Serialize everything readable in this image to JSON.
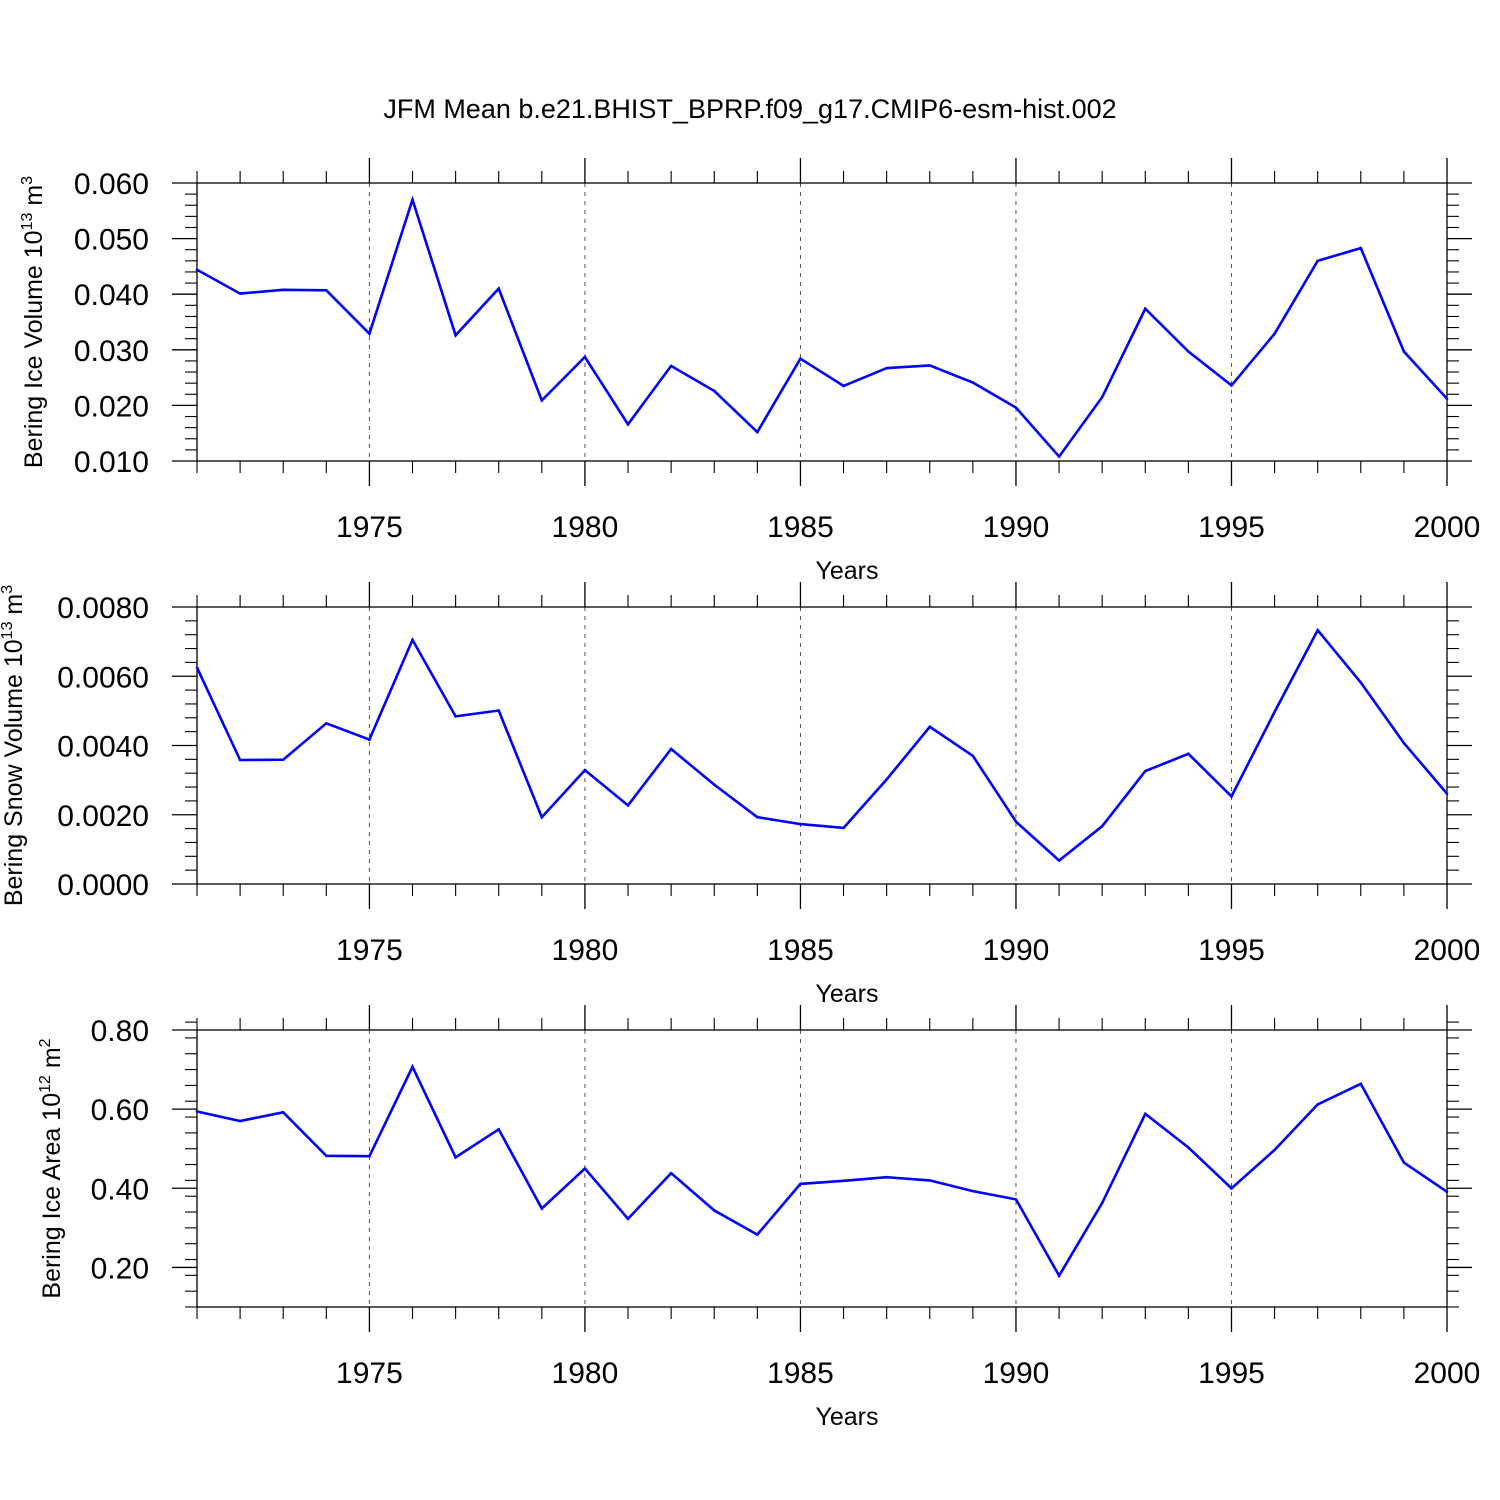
{
  "title": "JFM Mean b.e21.BHIST_BPRP.f09_g17.CMIP6-esm-hist.002",
  "colors": {
    "line": "#0000ff",
    "axis": "#000000",
    "grid": "#555555"
  },
  "chart_data": [
    {
      "type": "line",
      "name": "ice-volume",
      "ylabel_text": "Bering Ice Volume 10",
      "ylabel_exp": "13",
      "ylabel_unit": " m",
      "ylabel_unit_exp": "3",
      "xlabel": "Years",
      "xlim": [
        1971,
        2000
      ],
      "ylim": [
        0.01,
        0.06
      ],
      "yticks": [
        0.01,
        0.02,
        0.03,
        0.04,
        0.05,
        0.06
      ],
      "ytick_labels": [
        "0.010",
        "0.020",
        "0.030",
        "0.040",
        "0.050",
        "0.060"
      ],
      "xticks": [
        1975,
        1980,
        1985,
        1990,
        1995,
        2000
      ],
      "xtick_labels": [
        "1975",
        "1980",
        "1985",
        "1990",
        "1995",
        "2000"
      ],
      "x": [
        1971,
        1972,
        1973,
        1974,
        1975,
        1976,
        1977,
        1978,
        1979,
        1980,
        1981,
        1982,
        1983,
        1984,
        1985,
        1986,
        1987,
        1988,
        1989,
        1990,
        1991,
        1992,
        1993,
        1994,
        1995,
        1996,
        1997,
        1998,
        1999,
        2000
      ],
      "values": [
        0.0444,
        0.0401,
        0.0408,
        0.0407,
        0.0329,
        0.057,
        0.0326,
        0.041,
        0.0209,
        0.0287,
        0.0166,
        0.0271,
        0.0226,
        0.0152,
        0.0284,
        0.0235,
        0.0267,
        0.0272,
        0.0241,
        0.0196,
        0.0108,
        0.0215,
        0.0374,
        0.0297,
        0.0236,
        0.0329,
        0.046,
        0.0483,
        0.0297,
        0.0212
      ]
    },
    {
      "type": "line",
      "name": "snow-volume",
      "ylabel_text": "Bering Snow Volume 10",
      "ylabel_exp": "13",
      "ylabel_unit": " m",
      "ylabel_unit_exp": "3",
      "xlabel": "Years",
      "xlim": [
        1971,
        2000
      ],
      "ylim": [
        0.0,
        0.008
      ],
      "yticks": [
        0.0,
        0.002,
        0.004,
        0.006,
        0.008
      ],
      "ytick_labels": [
        "0.0000",
        "0.0020",
        "0.0040",
        "0.0060",
        "0.0080"
      ],
      "xticks": [
        1975,
        1980,
        1985,
        1990,
        1995,
        2000
      ],
      "xtick_labels": [
        "1975",
        "1980",
        "1985",
        "1990",
        "1995",
        "2000"
      ],
      "x": [
        1971,
        1972,
        1973,
        1974,
        1975,
        1976,
        1977,
        1978,
        1979,
        1980,
        1981,
        1982,
        1983,
        1984,
        1985,
        1986,
        1987,
        1988,
        1989,
        1990,
        1991,
        1992,
        1993,
        1994,
        1995,
        1996,
        1997,
        1998,
        1999,
        2000
      ],
      "values": [
        0.00625,
        0.00358,
        0.00359,
        0.00464,
        0.00417,
        0.00705,
        0.00484,
        0.00501,
        0.00193,
        0.00329,
        0.00227,
        0.0039,
        0.00287,
        0.00193,
        0.00173,
        0.00162,
        0.00302,
        0.00454,
        0.0037,
        0.0018,
        0.00068,
        0.00167,
        0.00326,
        0.00376,
        0.00253,
        0.00497,
        0.00733,
        0.00582,
        0.00407,
        0.00261
      ]
    },
    {
      "type": "line",
      "name": "ice-area",
      "ylabel_text": "Bering Ice Area 10",
      "ylabel_exp": "12",
      "ylabel_unit": " m",
      "ylabel_unit_exp": "2",
      "xlabel": "Years",
      "xlim": [
        1971,
        2000
      ],
      "ylim": [
        0.1,
        0.8
      ],
      "yticks": [
        0.2,
        0.4,
        0.6,
        0.8
      ],
      "ytick_labels": [
        "0.20",
        "0.40",
        "0.60",
        "0.80"
      ],
      "xticks": [
        1975,
        1980,
        1985,
        1990,
        1995,
        2000
      ],
      "xtick_labels": [
        "1975",
        "1980",
        "1985",
        "1990",
        "1995",
        "2000"
      ],
      "x": [
        1971,
        1972,
        1973,
        1974,
        1975,
        1976,
        1977,
        1978,
        1979,
        1980,
        1981,
        1982,
        1983,
        1984,
        1985,
        1986,
        1987,
        1988,
        1989,
        1990,
        1991,
        1992,
        1993,
        1994,
        1995,
        1996,
        1997,
        1998,
        1999,
        2000
      ],
      "values": [
        0.594,
        0.57,
        0.592,
        0.482,
        0.481,
        0.707,
        0.478,
        0.549,
        0.349,
        0.45,
        0.323,
        0.438,
        0.344,
        0.283,
        0.411,
        0.419,
        0.428,
        0.42,
        0.393,
        0.372,
        0.179,
        0.363,
        0.588,
        0.503,
        0.4,
        0.497,
        0.612,
        0.664,
        0.465,
        0.391
      ]
    }
  ]
}
